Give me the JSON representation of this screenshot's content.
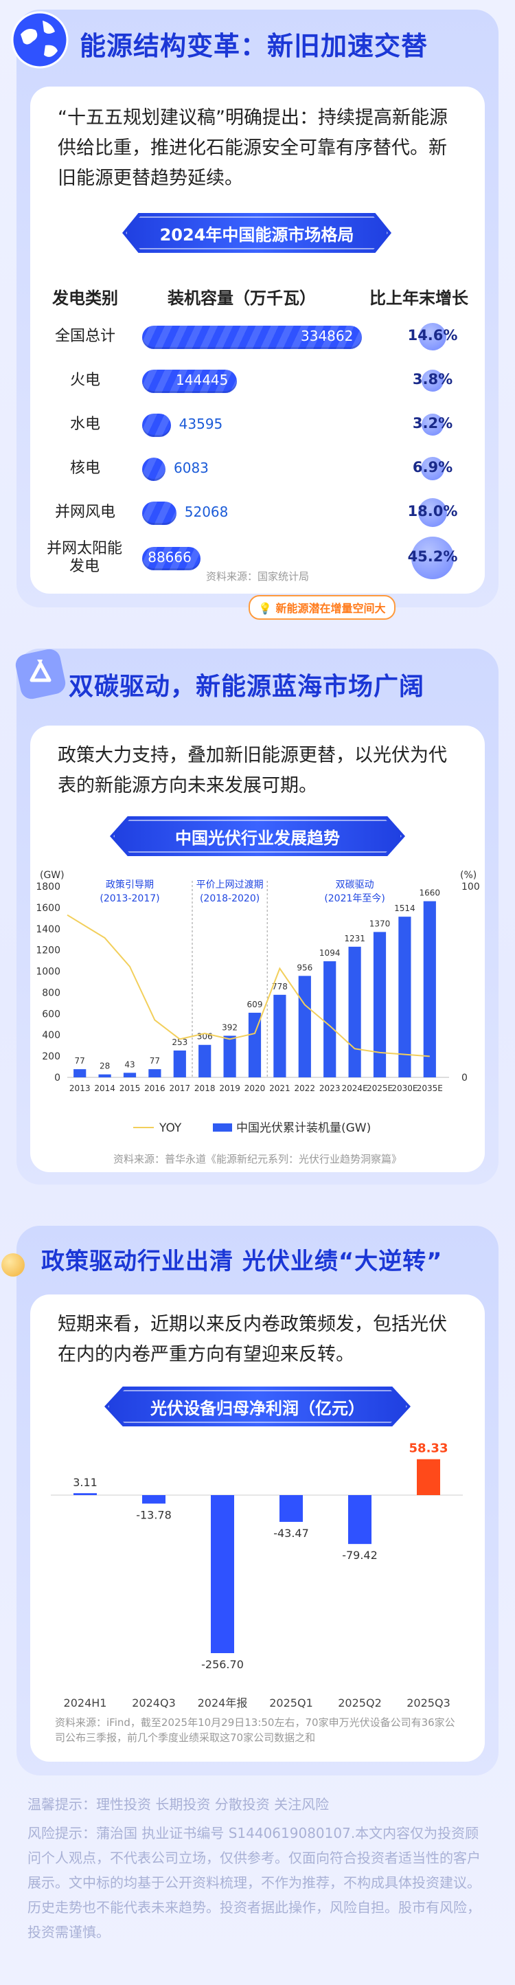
{
  "section1": {
    "title": "能源结构变革：新旧加速交替",
    "intro": "“十五五规划建议稿”明确提出：持续提高新能源供给比重，推进化石能源安全可靠有序替代。新旧能源更替趋势延续。",
    "ribbon": "2024年中国能源市场格局",
    "headers": [
      "发电类别",
      "装机容量（万千瓦）",
      "比上年末增长"
    ],
    "rows": [
      {
        "name": "全国总计",
        "value": "334862",
        "pct": "14.6%",
        "v": 334862,
        "p": 14.6
      },
      {
        "name": "火电",
        "value": "144445",
        "pct": "3.8%",
        "v": 144445,
        "p": 3.8
      },
      {
        "name": "水电",
        "value": "43595",
        "pct": "3.2%",
        "v": 43595,
        "p": 3.2
      },
      {
        "name": "核电",
        "value": "6083",
        "pct": "6.9%",
        "v": 6083,
        "p": 6.9
      },
      {
        "name": "并网风电",
        "value": "52068",
        "pct": "18.0%",
        "v": 52068,
        "p": 18.0
      },
      {
        "name": "并网太阳能发电",
        "value": "88666",
        "pct": "45.2%",
        "v": 88666,
        "p": 45.2
      }
    ],
    "callout": "新能源潜在增量空间大",
    "source": "资料来源：国家统计局"
  },
  "section2": {
    "title": "双碳驱动，新能源蓝海市场广阔",
    "intro": "政策大力支持，叠加新旧能源更替，以光伏为代表的新能源方向未来发展可期。",
    "ribbon": "中国光伏行业发展趋势",
    "source": "资料来源：普华永道《能源新纪元系列：光伏行业趋势洞察篇》"
  },
  "section3": {
    "title": "政策驱动行业出清 光伏业绩“大逆转”",
    "intro": "短期来看，近期以来反内卷政策频发，包括光伏在内的内卷严重方向有望迎来反转。",
    "ribbon": "光伏设备归母净利润（亿元）",
    "source": "资料来源：iFind，截至2025年10月29日13:50左右，70家申万光伏设备公司有36家公司公布三季报，前几个季度业绩采取这70家公司数据之和"
  },
  "footer": {
    "tip": "温馨提示：理性投资 长期投资 分散投资 关注风险",
    "risk": "风险提示：蒲治国 执业证书编号 S1440619080107.本文内容仅为投资顾问个人观点，不代表公司立场，仅供参考。仅面向符合投资者适当性的客户展示。文中标的均基于公开资料梳理，不作为推荐，不构成具体投资建议。历史走势也不能代表未来趋势。投资者据此操作，风险自担。股市有风险，投资需谨慎。"
  },
  "chart_data": [
    {
      "type": "bar",
      "title": "中国光伏行业发展趋势",
      "categories": [
        "2013",
        "2014",
        "2015",
        "2016",
        "2017",
        "2018",
        "2019",
        "2020",
        "2021",
        "2022",
        "2023",
        "2024E",
        "2025E",
        "2030E",
        "2035E"
      ],
      "series": [
        {
          "name": "中国光伏累计装机量(GW)",
          "type": "bar",
          "values": [
            77,
            28,
            43,
            77,
            253,
            306,
            392,
            609,
            778,
            956,
            1094,
            1231,
            1370,
            1514,
            1660
          ],
          "color": "#2f5bf2"
        },
        {
          "name": "YOY",
          "type": "line",
          "values": [
            85,
            73,
            58,
            30,
            20,
            23,
            20,
            23,
            57,
            38,
            27,
            15,
            13,
            12,
            11
          ],
          "color": "#f2cf5b"
        }
      ],
      "yleft_label": "(GW)",
      "yright_label": "(%)",
      "ylim": [
        0,
        1800
      ],
      "y2lim": [
        0,
        100
      ],
      "yticks": [
        0,
        200,
        400,
        600,
        800,
        1000,
        1200,
        1400,
        1600,
        1800
      ],
      "y2ticks": [
        0,
        100
      ],
      "phases": [
        {
          "label": "政策引导期",
          "range": "(2013-2017)"
        },
        {
          "label": "平价上网过渡期",
          "range": "(2018-2020)"
        },
        {
          "label": "双碳驱动",
          "range": "(2021年至今)"
        }
      ],
      "legend": "bottom"
    },
    {
      "type": "bar",
      "title": "光伏设备归母净利润（亿元）",
      "categories": [
        "2024H1",
        "2024Q3",
        "2024年报",
        "2025Q1",
        "2025Q2",
        "2025Q3"
      ],
      "values": [
        3.11,
        -13.78,
        -256.7,
        -43.47,
        -79.42,
        58.33
      ],
      "labels": [
        "3.11",
        "-13.78",
        "-256.70",
        "-43.47",
        "-79.42",
        "58.33"
      ],
      "colors": {
        "default": "#2f52ff",
        "highlight": "#ff4a1a"
      }
    }
  ]
}
